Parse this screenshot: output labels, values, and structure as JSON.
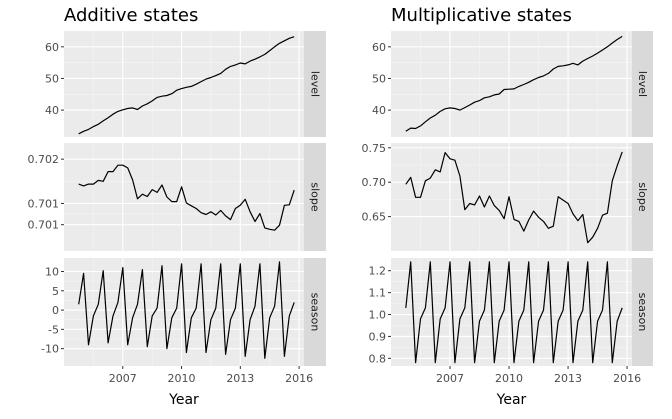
{
  "chart_data": [
    {
      "type": "line",
      "title": "Additive states",
      "xlabel": "Year",
      "xlim": [
        2004.0,
        2016.25
      ],
      "x_ticks": [
        "2007",
        "2010",
        "2013",
        "2016"
      ],
      "x_tick_values": [
        2007,
        2010,
        2013,
        2016
      ],
      "panels": [
        {
          "strip": "level",
          "ylim": [
            31.5,
            65
          ],
          "y_ticks": [
            "40",
            "50",
            "60"
          ],
          "y_tick_values": [
            40,
            50,
            60
          ],
          "x": [
            2004.75,
            2005.0,
            2005.25,
            2005.5,
            2005.75,
            2006.0,
            2006.25,
            2006.5,
            2006.75,
            2007.0,
            2007.25,
            2007.5,
            2007.75,
            2008.0,
            2008.25,
            2008.5,
            2008.75,
            2009.0,
            2009.25,
            2009.5,
            2009.75,
            2010.0,
            2010.25,
            2010.5,
            2010.75,
            2011.0,
            2011.25,
            2011.5,
            2011.75,
            2012.0,
            2012.25,
            2012.5,
            2012.75,
            2013.0,
            2013.25,
            2013.5,
            2013.75,
            2014.0,
            2014.25,
            2014.5,
            2014.75,
            2015.0,
            2015.25,
            2015.5,
            2015.75
          ],
          "values": [
            32.5,
            33.3,
            33.9,
            34.8,
            35.5,
            36.6,
            37.6,
            38.7,
            39.6,
            40.1,
            40.5,
            40.7,
            40.2,
            41.3,
            42.0,
            42.9,
            44.0,
            44.4,
            44.6,
            45.2,
            46.3,
            46.8,
            47.2,
            47.5,
            48.2,
            49.0,
            49.8,
            50.3,
            50.9,
            51.6,
            52.9,
            53.8,
            54.3,
            54.9,
            54.6,
            55.5,
            56.1,
            56.8,
            57.6,
            58.8,
            60.0,
            61.1,
            61.9,
            62.7,
            63.2
          ]
        },
        {
          "strip": "slope",
          "ylim": [
            0.70028,
            0.70262
          ],
          "y_ticks": [
            "0.701",
            "0.701",
            "0.702"
          ],
          "y_tick_values": [
            0.70085,
            0.70131,
            0.70227
          ],
          "x": [
            2004.75,
            2005.0,
            2005.25,
            2005.5,
            2005.75,
            2006.0,
            2006.25,
            2006.5,
            2006.75,
            2007.0,
            2007.25,
            2007.5,
            2007.75,
            2008.0,
            2008.25,
            2008.5,
            2008.75,
            2009.0,
            2009.25,
            2009.5,
            2009.75,
            2010.0,
            2010.25,
            2010.5,
            2010.75,
            2011.0,
            2011.25,
            2011.5,
            2011.75,
            2012.0,
            2012.25,
            2012.5,
            2012.75,
            2013.0,
            2013.25,
            2013.5,
            2013.75,
            2014.0,
            2014.25,
            2014.5,
            2014.75,
            2015.0,
            2015.25,
            2015.5,
            2015.75
          ],
          "values": [
            0.70173,
            0.70169,
            0.70173,
            0.70173,
            0.70181,
            0.70179,
            0.702,
            0.702,
            0.70214,
            0.70214,
            0.70208,
            0.70182,
            0.70141,
            0.70151,
            0.70146,
            0.70161,
            0.70155,
            0.70171,
            0.70145,
            0.70135,
            0.70135,
            0.70167,
            0.70132,
            0.70126,
            0.7012,
            0.70111,
            0.70107,
            0.70113,
            0.70106,
            0.70116,
            0.70104,
            0.70096,
            0.7012,
            0.70127,
            0.7014,
            0.70113,
            0.70092,
            0.70109,
            0.70078,
            0.70075,
            0.70073,
            0.70084,
            0.70127,
            0.70128,
            0.7016
          ]
        },
        {
          "strip": "season",
          "ylim": [
            -14.5,
            13.5
          ],
          "y_ticks": [
            "-10",
            "-5",
            "0",
            "5",
            "10"
          ],
          "y_tick_values": [
            -10,
            -5,
            0,
            5,
            10
          ],
          "x": [
            2004.75,
            2005.0,
            2005.25,
            2005.5,
            2005.75,
            2006.0,
            2006.25,
            2006.5,
            2006.75,
            2007.0,
            2007.25,
            2007.5,
            2007.75,
            2008.0,
            2008.25,
            2008.5,
            2008.75,
            2009.0,
            2009.25,
            2009.5,
            2009.75,
            2010.0,
            2010.25,
            2010.5,
            2010.75,
            2011.0,
            2011.25,
            2011.5,
            2011.75,
            2012.0,
            2012.25,
            2012.5,
            2012.75,
            2013.0,
            2013.25,
            2013.5,
            2013.75,
            2014.0,
            2014.25,
            2014.5,
            2014.75,
            2015.0,
            2015.25,
            2015.5,
            2015.75
          ],
          "values": [
            1.5,
            9.5,
            -9.0,
            -1.5,
            1.5,
            10.2,
            -8.5,
            -1.5,
            2.0,
            11.0,
            -9.0,
            -2.0,
            1.5,
            10.5,
            -9.5,
            -1.5,
            0.5,
            11.5,
            -10.0,
            -2.0,
            0.5,
            12.0,
            -11.0,
            -2.0,
            0.5,
            12.0,
            -11.0,
            -2.5,
            0.5,
            12.0,
            -11.5,
            -2.5,
            0.5,
            12.0,
            -12.0,
            -2.5,
            1.0,
            12.0,
            -12.5,
            -2.0,
            1.0,
            12.5,
            -12.0,
            -1.5,
            2.0
          ]
        }
      ]
    },
    {
      "type": "line",
      "title": "Multiplicative states",
      "xlabel": "Year",
      "xlim": [
        2004.0,
        2016.25
      ],
      "x_ticks": [
        "2007",
        "2010",
        "2013",
        "2016"
      ],
      "x_tick_values": [
        2007,
        2010,
        2013,
        2016
      ],
      "panels": [
        {
          "strip": "level",
          "ylim": [
            31.5,
            65
          ],
          "y_ticks": [
            "40",
            "50",
            "60"
          ],
          "y_tick_values": [
            40,
            50,
            60
          ],
          "x": [
            2004.75,
            2005.0,
            2005.25,
            2005.5,
            2005.75,
            2006.0,
            2006.25,
            2006.5,
            2006.75,
            2007.0,
            2007.25,
            2007.5,
            2007.75,
            2008.0,
            2008.25,
            2008.5,
            2008.75,
            2009.0,
            2009.25,
            2009.5,
            2009.75,
            2010.0,
            2010.25,
            2010.5,
            2010.75,
            2011.0,
            2011.25,
            2011.5,
            2011.75,
            2012.0,
            2012.25,
            2012.5,
            2012.75,
            2013.0,
            2013.25,
            2013.5,
            2013.75,
            2014.0,
            2014.25,
            2014.5,
            2014.75,
            2015.0,
            2015.25,
            2015.5,
            2015.75
          ],
          "values": [
            33.3,
            34.3,
            34.2,
            35.0,
            36.3,
            37.5,
            38.4,
            39.6,
            40.4,
            40.7,
            40.5,
            40.0,
            40.8,
            41.6,
            42.5,
            43.0,
            43.9,
            44.2,
            44.8,
            45.1,
            46.5,
            46.6,
            46.7,
            47.5,
            48.1,
            48.8,
            49.6,
            50.3,
            50.8,
            51.6,
            53.0,
            53.8,
            54.0,
            54.3,
            54.8,
            54.3,
            55.5,
            56.3,
            57.1,
            58.0,
            59.0,
            60.0,
            61.2,
            62.3,
            63.3
          ]
        },
        {
          "strip": "slope",
          "ylim": [
            0.6,
            0.757
          ],
          "y_ticks": [
            "0.65",
            "0.70",
            "0.75"
          ],
          "y_tick_values": [
            0.65,
            0.7,
            0.75
          ],
          "x": [
            2004.75,
            2005.0,
            2005.25,
            2005.5,
            2005.75,
            2006.0,
            2006.25,
            2006.5,
            2006.75,
            2007.0,
            2007.25,
            2007.5,
            2007.75,
            2008.0,
            2008.25,
            2008.5,
            2008.75,
            2009.0,
            2009.25,
            2009.5,
            2009.75,
            2010.0,
            2010.25,
            2010.5,
            2010.75,
            2011.0,
            2011.25,
            2011.5,
            2011.75,
            2012.0,
            2012.25,
            2012.5,
            2012.75,
            2013.0,
            2013.25,
            2013.5,
            2013.75,
            2014.0,
            2014.25,
            2014.5,
            2014.75,
            2015.0,
            2015.25,
            2015.5,
            2015.75
          ],
          "values": [
            0.697,
            0.707,
            0.678,
            0.678,
            0.702,
            0.706,
            0.718,
            0.715,
            0.743,
            0.734,
            0.732,
            0.709,
            0.66,
            0.669,
            0.667,
            0.68,
            0.664,
            0.68,
            0.666,
            0.659,
            0.647,
            0.679,
            0.646,
            0.643,
            0.629,
            0.645,
            0.658,
            0.649,
            0.643,
            0.633,
            0.636,
            0.679,
            0.674,
            0.669,
            0.654,
            0.644,
            0.653,
            0.612,
            0.62,
            0.633,
            0.652,
            0.655,
            0.702,
            0.724,
            0.744
          ]
        },
        {
          "strip": "season",
          "ylim": [
            0.765,
            1.258
          ],
          "y_ticks": [
            "0.8",
            "0.9",
            "1.0",
            "1.1",
            "1.2"
          ],
          "y_tick_values": [
            0.8,
            0.9,
            1.0,
            1.1,
            1.2
          ],
          "x": [
            2004.75,
            2005.0,
            2005.25,
            2005.5,
            2005.75,
            2006.0,
            2006.25,
            2006.5,
            2006.75,
            2007.0,
            2007.25,
            2007.5,
            2007.75,
            2008.0,
            2008.25,
            2008.5,
            2008.75,
            2009.0,
            2009.25,
            2009.5,
            2009.75,
            2010.0,
            2010.25,
            2010.5,
            2010.75,
            2011.0,
            2011.25,
            2011.5,
            2011.75,
            2012.0,
            2012.25,
            2012.5,
            2012.75,
            2013.0,
            2013.25,
            2013.5,
            2013.75,
            2014.0,
            2014.25,
            2014.5,
            2014.75,
            2015.0,
            2015.25,
            2015.5,
            2015.75
          ],
          "values": [
            1.03,
            1.24,
            0.78,
            0.98,
            1.03,
            1.24,
            0.78,
            0.98,
            1.03,
            1.24,
            0.78,
            0.98,
            1.03,
            1.24,
            0.78,
            0.97,
            1.02,
            1.24,
            0.78,
            0.97,
            1.02,
            1.24,
            0.78,
            0.97,
            1.02,
            1.24,
            0.78,
            0.97,
            1.02,
            1.24,
            0.78,
            0.97,
            1.02,
            1.24,
            0.78,
            0.97,
            1.02,
            1.24,
            0.78,
            0.97,
            1.02,
            1.24,
            0.78,
            0.97,
            1.03
          ]
        }
      ]
    }
  ]
}
